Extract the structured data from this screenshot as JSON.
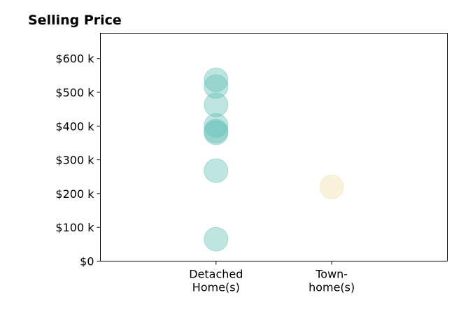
{
  "chart_data": {
    "type": "scatter",
    "title": "Selling Price",
    "xlabel": "",
    "ylabel": "",
    "categories": [
      {
        "label_lines": [
          "Detached",
          "Home(s)"
        ]
      },
      {
        "label_lines": [
          "Town-",
          "home(s)"
        ]
      }
    ],
    "x_range": [
      -1,
      2
    ],
    "ylim": [
      0,
      675
    ],
    "y_ticks": [
      {
        "value": 0,
        "label": "$0"
      },
      {
        "value": 100,
        "label": "$100 k"
      },
      {
        "value": 200,
        "label": "$200 k"
      },
      {
        "value": 300,
        "label": "$300 k"
      },
      {
        "value": 400,
        "label": "$400 k"
      },
      {
        "value": 500,
        "label": "$500 k"
      },
      {
        "value": 600,
        "label": "$600 k"
      }
    ],
    "series": [
      {
        "category_index": 0,
        "color": "#5fbdb3",
        "values": [
          537,
          517,
          463,
          402,
          385,
          380,
          268,
          65
        ]
      },
      {
        "category_index": 1,
        "color": "#f3dda4",
        "values": [
          220
        ]
      }
    ],
    "grid": false,
    "legend": "none",
    "marker_opacity": 0.4
  }
}
